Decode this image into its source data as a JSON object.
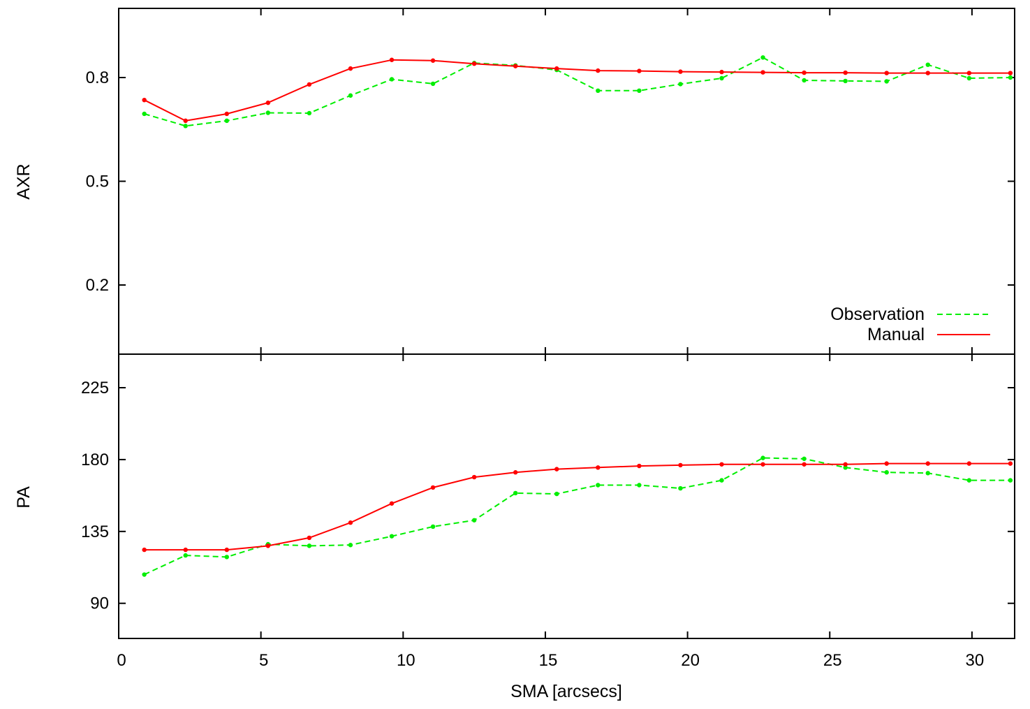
{
  "chart_data": [
    {
      "id": "axr",
      "type": "line",
      "title": "",
      "xlabel": "",
      "ylabel": "AXR",
      "xlim": [
        0,
        31.5
      ],
      "ylim": [
        0.0,
        1.0
      ],
      "yticks": [
        0.2,
        0.5,
        0.8
      ],
      "ytick_labels": [
        "0.2",
        "0.5",
        "0.8"
      ],
      "grid": false,
      "legend_position": "bottom-right",
      "series": [
        {
          "name": "Observation",
          "color": "#00ee00",
          "style": "dashed",
          "x": [
            0.9,
            2.35,
            3.8,
            5.25,
            6.7,
            8.15,
            9.6,
            11.05,
            12.5,
            13.95,
            15.4,
            16.85,
            18.3,
            19.75,
            21.2,
            22.65,
            24.1,
            25.55,
            27.0,
            28.45,
            29.9,
            31.35
          ],
          "y": [
            0.695,
            0.66,
            0.675,
            0.698,
            0.697,
            0.748,
            0.795,
            0.782,
            0.842,
            0.835,
            0.822,
            0.762,
            0.762,
            0.781,
            0.798,
            0.858,
            0.792,
            0.79,
            0.789,
            0.837,
            0.798,
            0.8
          ]
        },
        {
          "name": "Manual",
          "color": "#ff0000",
          "style": "solid",
          "x": [
            0.9,
            2.35,
            3.8,
            5.25,
            6.7,
            8.15,
            9.6,
            11.05,
            12.5,
            13.95,
            15.4,
            16.85,
            18.3,
            19.75,
            21.2,
            22.65,
            24.1,
            25.55,
            27.0,
            28.45,
            29.9,
            31.35
          ],
          "y": [
            0.735,
            0.675,
            0.695,
            0.727,
            0.78,
            0.826,
            0.851,
            0.849,
            0.84,
            0.833,
            0.826,
            0.82,
            0.819,
            0.817,
            0.816,
            0.815,
            0.814,
            0.814,
            0.813,
            0.813,
            0.813,
            0.813
          ]
        }
      ]
    },
    {
      "id": "pa",
      "type": "line",
      "title": "",
      "xlabel": "SMA [arcsecs]",
      "ylabel": "PA",
      "xlim": [
        0,
        31.5
      ],
      "ylim": [
        68,
        246
      ],
      "xticks": [
        0,
        5,
        10,
        15,
        20,
        25,
        30
      ],
      "xtick_labels": [
        "0",
        "5",
        "10",
        "15",
        "20",
        "25",
        "30"
      ],
      "yticks": [
        90,
        135,
        180,
        225
      ],
      "ytick_labels": [
        "90",
        "135",
        "180",
        "225"
      ],
      "grid": false,
      "series": [
        {
          "name": "Observation",
          "color": "#00ee00",
          "style": "dashed",
          "x": [
            0.9,
            2.35,
            3.8,
            5.25,
            6.7,
            8.15,
            9.6,
            11.05,
            12.5,
            13.95,
            15.4,
            16.85,
            18.3,
            19.75,
            21.2,
            22.65,
            24.1,
            25.55,
            27.0,
            28.45,
            29.9,
            31.35
          ],
          "y": [
            108,
            120,
            119,
            127,
            126,
            126.5,
            132,
            138,
            142,
            159,
            158.5,
            164,
            164,
            162,
            167,
            181,
            180.5,
            175,
            172,
            171.5,
            167,
            167
          ]
        },
        {
          "name": "Manual",
          "color": "#ff0000",
          "style": "solid",
          "x": [
            0.9,
            2.35,
            3.8,
            5.25,
            6.7,
            8.15,
            9.6,
            11.05,
            12.5,
            13.95,
            15.4,
            16.85,
            18.3,
            19.75,
            21.2,
            22.65,
            24.1,
            25.55,
            27.0,
            28.45,
            29.9,
            31.35
          ],
          "y": [
            123.5,
            123.5,
            123.5,
            126,
            131,
            140.5,
            152.5,
            162.5,
            169,
            172,
            174,
            175,
            176,
            176.5,
            177,
            177,
            177,
            177,
            177.5,
            177.5,
            177.5,
            177.5
          ]
        }
      ]
    }
  ],
  "legend": {
    "observation_label": "Observation",
    "manual_label": "Manual"
  }
}
